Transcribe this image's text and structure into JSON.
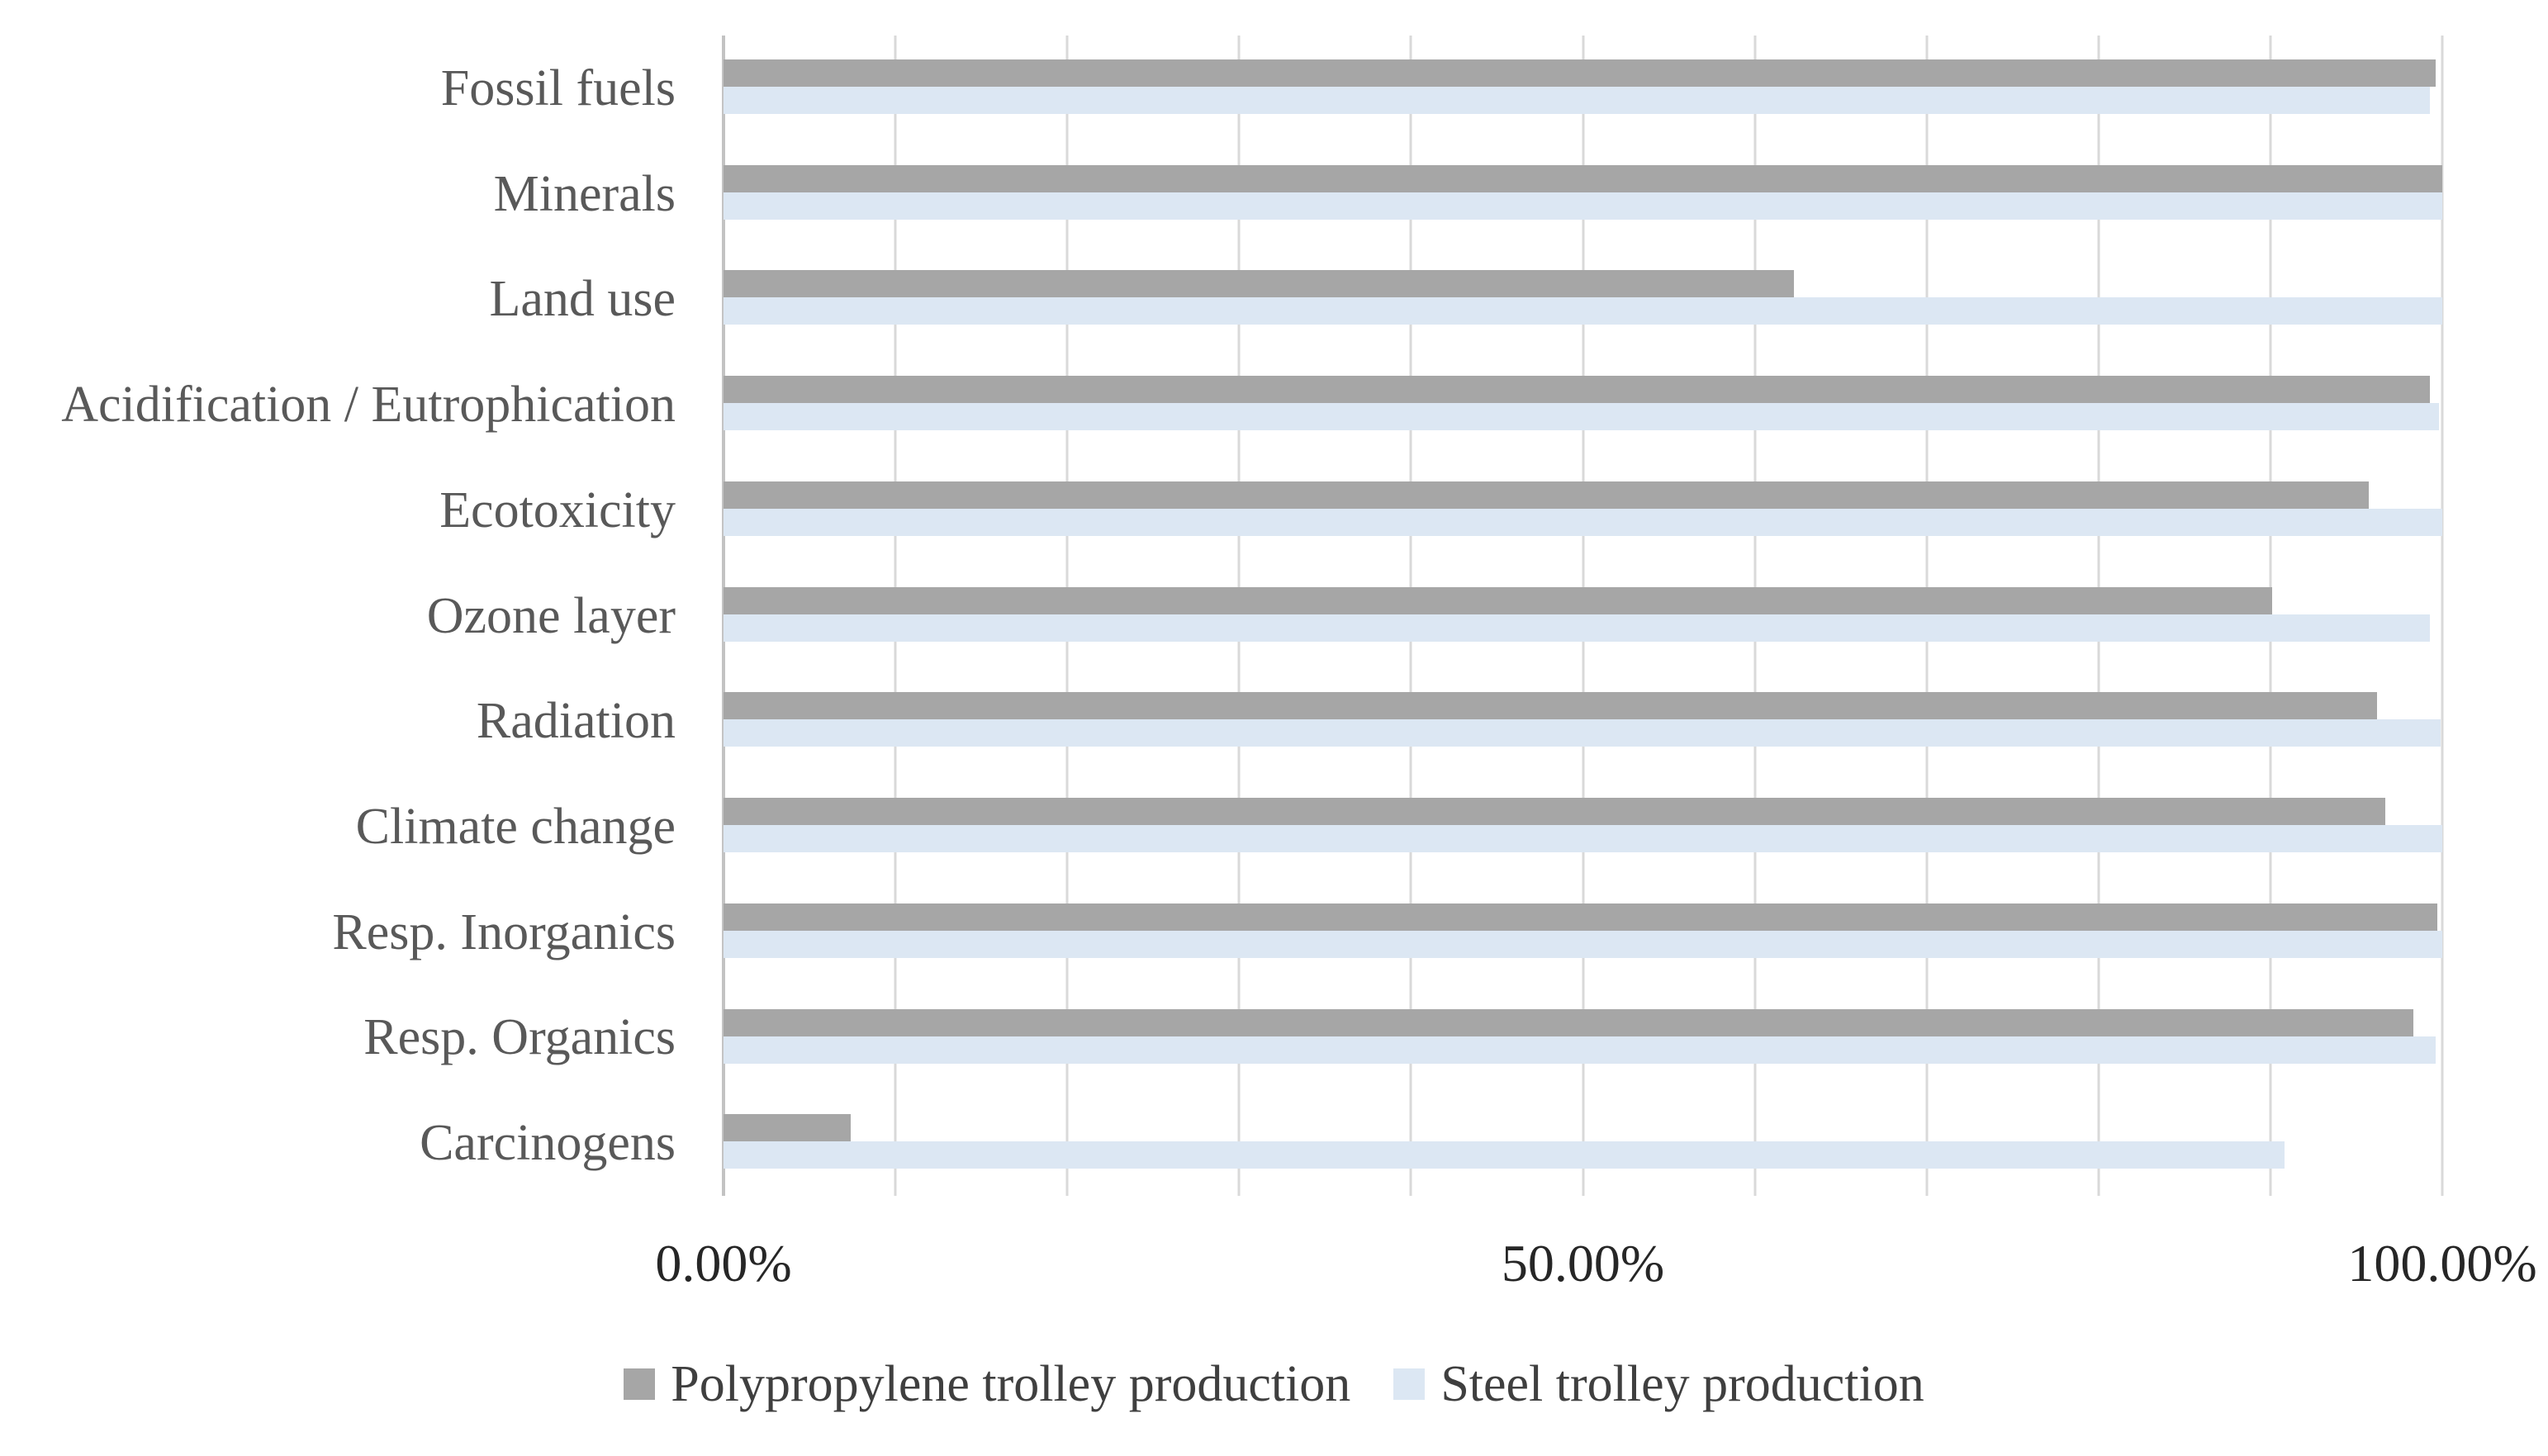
{
  "chart_data": {
    "type": "bar",
    "orientation": "horizontal",
    "title": "",
    "xlabel": "",
    "ylabel": "",
    "categories": [
      "Fossil fuels",
      "Minerals",
      "Land use",
      "Acidification / Eutrophication",
      "Ecotoxicity",
      "Ozone layer",
      "Radiation",
      "Climate change",
      "Resp. Inorganics",
      "Resp. Organics",
      "Carcinogens"
    ],
    "series": [
      {
        "name": "Polypropylene trolley production",
        "color": "#A6A6A6",
        "values": [
          99.6,
          100,
          62.3,
          99.3,
          95.7,
          90.1,
          96.2,
          96.7,
          99.7,
          98.3,
          7.4
        ]
      },
      {
        "name": "Steel trolley production",
        "color": "#DCE7F3",
        "values": [
          99.3,
          100,
          100,
          99.8,
          100,
          99.3,
          99.9,
          100,
          100,
          99.6,
          90.8
        ]
      }
    ],
    "x_axis": {
      "min": 0,
      "max": 100,
      "gridline_step": 10,
      "ticks": [
        "0.00%",
        "50.00%",
        "100.00%"
      ],
      "tick_values": [
        0,
        50,
        100
      ]
    },
    "grid": true,
    "legend_position": "bottom",
    "colors": {
      "gridline": "#D9D9D9",
      "axis_line": "#C3C3C3",
      "category_text": "#595959",
      "tick_text": "#262626",
      "legend_text": "#3F3F3F",
      "background": "#FFFFFF"
    }
  }
}
